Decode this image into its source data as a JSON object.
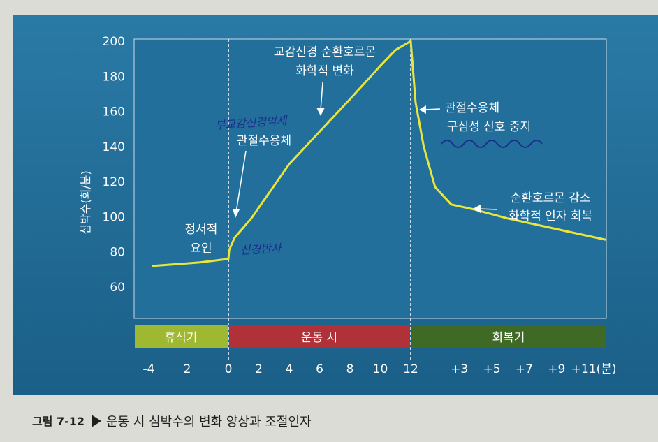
{
  "chart_data": {
    "type": "line",
    "ylabel": "심박수(회/분)",
    "ylim": [
      60,
      200
    ],
    "y_ticks": [
      60,
      80,
      100,
      120,
      140,
      160,
      180,
      200
    ],
    "x_tick_labels": [
      "-4",
      "2",
      "0",
      "2",
      "4",
      "6",
      "8",
      "10",
      "12",
      "+3",
      "+5",
      "+7",
      "+9",
      "+11(분)"
    ],
    "series": [
      {
        "values": [
          {
            "t": -4,
            "y": 72
          },
          {
            "t": -1.5,
            "y": 74
          },
          {
            "t": 0,
            "y": 76
          },
          {
            "t": 0.05,
            "y": 81
          },
          {
            "t": 0.4,
            "y": 88
          },
          {
            "t": 1.5,
            "y": 99
          },
          {
            "t": 4,
            "y": 130
          },
          {
            "t": 8,
            "y": 167
          },
          {
            "t": 10,
            "y": 186
          },
          {
            "t": 11,
            "y": 195
          },
          {
            "t": 12,
            "y": 200
          },
          {
            "t": 12.3,
            "y": 165
          },
          {
            "t": 12.8,
            "y": 140
          },
          {
            "t": 13.5,
            "y": 117
          },
          {
            "t": 14.5,
            "y": 107
          },
          {
            "t": 16,
            "y": 104
          },
          {
            "t": 18,
            "y": 99
          },
          {
            "t": 20,
            "y": 95
          },
          {
            "t": 22,
            "y": 91
          },
          {
            "t": 24,
            "y": 87
          }
        ]
      }
    ],
    "phases": [
      {
        "label": "휴식기",
        "color": "#9fb832"
      },
      {
        "label": "운동 시",
        "color": "#b03238"
      },
      {
        "label": "회복기",
        "color": "#3f6a26"
      }
    ],
    "annotations": {
      "emotional_1": "정서적",
      "emotional_2": "요인",
      "proprio_1": "관절수용체",
      "sympathetic_1": "교감신경 순환호르몬",
      "sympathetic_2": "화학적 변화",
      "stop_1": "관절수용체",
      "stop_2": "구심성 신호 중지",
      "recovery_1": "순환호르몬 감소",
      "recovery_2": "화학적 인자 회복"
    },
    "handwriting": {
      "note_1": "부교감신경억제",
      "note_2": "신경반사"
    }
  },
  "caption": {
    "number": "그림 7-12",
    "text": "운동 시 심박수의 변화 양상과 조절인자"
  },
  "colors": {
    "panel": "#1f6e9a",
    "line": "#e8e63a",
    "text": "#ffffff"
  }
}
